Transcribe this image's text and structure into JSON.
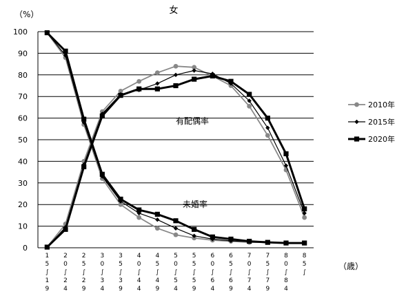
{
  "chart_data": {
    "type": "line",
    "title": "女",
    "yunit": "（%）",
    "xunit": "（歳）",
    "ylim": [
      0,
      100
    ],
    "ytick_step": 10,
    "grid": true,
    "legend_position": "right",
    "categories": [
      "15～19",
      "20～24",
      "25～29",
      "30～34",
      "35～39",
      "40～44",
      "45～49",
      "50～54",
      "55～59",
      "60～64",
      "65～69",
      "70～74",
      "75～79",
      "80～84",
      "85～"
    ],
    "series": [
      {
        "name": "2010年",
        "group": "未婚率",
        "color": "#888888",
        "values": [
          99.5,
          88.0,
          57.0,
          32.0,
          20.0,
          14.0,
          9.0,
          6.0,
          4.5,
          3.5,
          3.0,
          2.5,
          2.5,
          2.2,
          2.2
        ]
      },
      {
        "name": "2015年",
        "group": "未婚率",
        "color": "#000000",
        "values": [
          99.5,
          89.0,
          58.0,
          33.0,
          21.5,
          16.0,
          13.0,
          9.0,
          5.5,
          4.0,
          3.2,
          2.8,
          2.5,
          2.2,
          2.2
        ]
      },
      {
        "name": "2020年",
        "group": "未婚率",
        "color": "#000000",
        "values": [
          99.5,
          91.0,
          59.5,
          34.0,
          22.5,
          17.5,
          15.5,
          12.5,
          8.5,
          5.0,
          4.0,
          3.0,
          2.5,
          2.2,
          2.2
        ]
      },
      {
        "name": "2010年",
        "group": "有配偶率",
        "color": "#888888",
        "values": [
          0.3,
          11.0,
          40.0,
          63.0,
          72.5,
          77.0,
          81.0,
          84.0,
          83.5,
          79.5,
          75.0,
          65.5,
          52.0,
          36.0,
          14.0
        ]
      },
      {
        "name": "2015年",
        "group": "有配偶率",
        "color": "#000000",
        "values": [
          0.3,
          9.5,
          38.5,
          62.0,
          71.0,
          73.0,
          76.0,
          80.0,
          82.0,
          80.5,
          76.0,
          68.0,
          55.5,
          38.0,
          16.0
        ]
      },
      {
        "name": "2020年",
        "group": "有配偶率",
        "color": "#000000",
        "values": [
          0.3,
          8.5,
          37.5,
          61.0,
          70.5,
          73.5,
          73.5,
          75.0,
          78.0,
          79.5,
          77.0,
          71.0,
          60.0,
          43.5,
          18.0
        ]
      }
    ],
    "legend": [
      {
        "label": "2010年",
        "color": "#888888",
        "marker": "circle",
        "width": 1.8
      },
      {
        "label": "2015年",
        "color": "#000000",
        "marker": "diamond",
        "width": 1.2
      },
      {
        "label": "2020年",
        "color": "#000000",
        "marker": "square",
        "width": 3.0
      }
    ],
    "annotations": [
      "有配偶率",
      "未婚率"
    ]
  }
}
